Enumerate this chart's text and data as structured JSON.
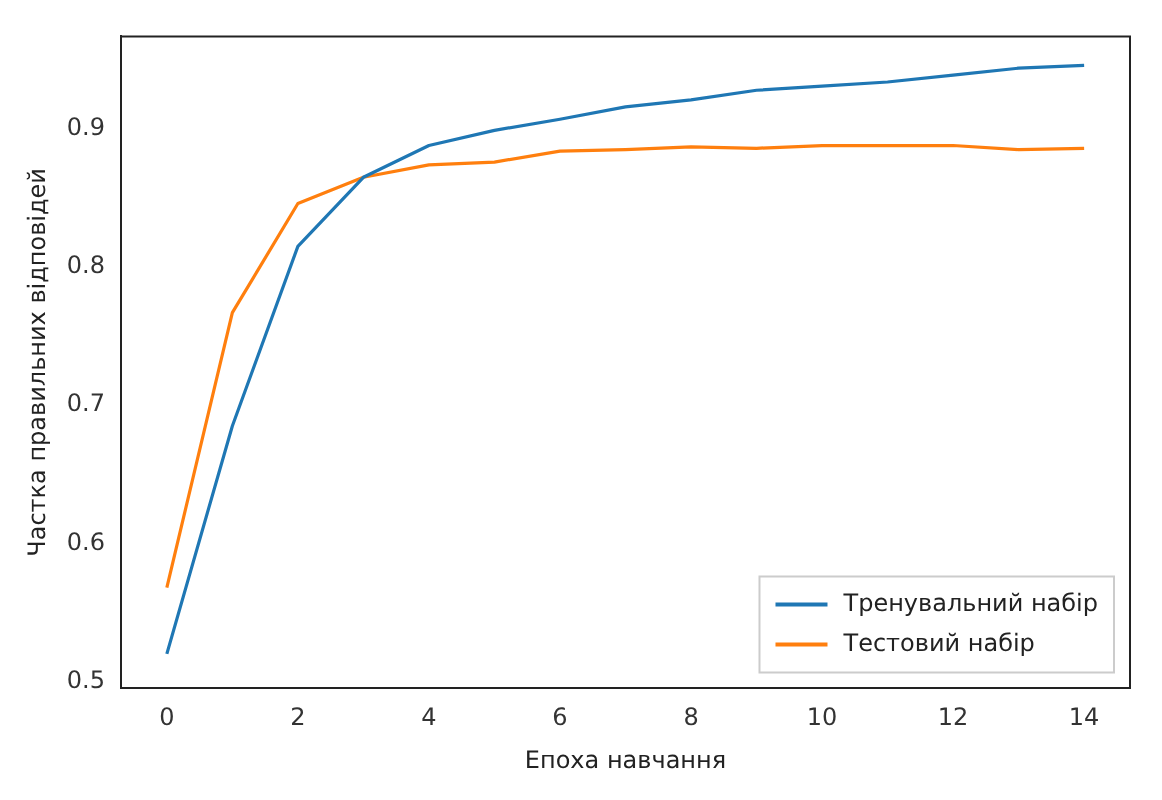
{
  "chart_data": {
    "type": "line",
    "xlabel": "Епоха навчання",
    "ylabel": "Частка правильних відповідей",
    "x": [
      0,
      1,
      2,
      3,
      4,
      5,
      6,
      7,
      8,
      9,
      10,
      11,
      12,
      13,
      14
    ],
    "series": [
      {
        "name": "Тренувальний набір",
        "color": "#1f77b4",
        "values": [
          0.52,
          0.685,
          0.815,
          0.865,
          0.888,
          0.899,
          0.907,
          0.916,
          0.921,
          0.928,
          0.931,
          0.934,
          0.939,
          0.944,
          0.946
        ]
      },
      {
        "name": "Тестовий набір",
        "color": "#ff7f0e",
        "values": [
          0.568,
          0.767,
          0.846,
          0.865,
          0.874,
          0.876,
          0.884,
          0.885,
          0.887,
          0.886,
          0.888,
          0.888,
          0.888,
          0.885,
          0.886
        ]
      }
    ],
    "xlim": [
      -0.7,
      14.7
    ],
    "xticks": [
      0,
      2,
      4,
      6,
      8,
      10,
      12,
      14
    ],
    "ylim": [
      0.495,
      0.967
    ],
    "yticks": [
      0.5,
      0.6,
      0.7,
      0.8,
      0.9
    ],
    "grid": false,
    "legend": "bottom right",
    "marker": "none",
    "line_style": "solid"
  }
}
